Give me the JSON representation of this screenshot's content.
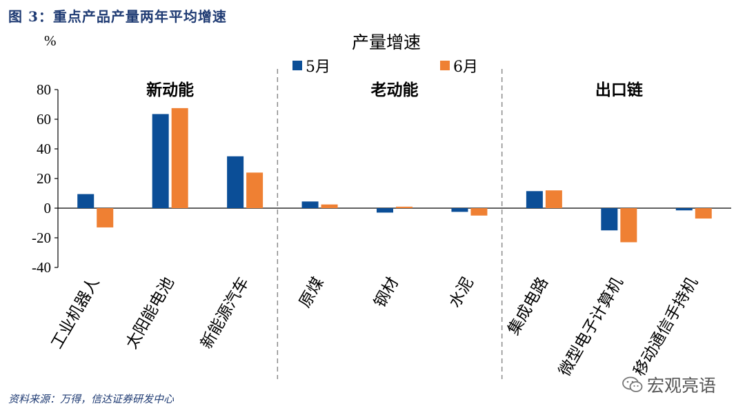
{
  "figure_title": "图 3：重点产品产量两年平均增速",
  "source_note": "资料来源：万得，信达证券研发中心",
  "watermark": "宏观亮语",
  "chart_data": {
    "type": "bar",
    "title": "产量增速",
    "ylabel": "%",
    "ylim": [
      -40,
      80
    ],
    "yticks": [
      80,
      60,
      40,
      20,
      0,
      -20,
      -40
    ],
    "categories": [
      "工业机器人",
      "太阳能电池",
      "新能源汽车",
      "原煤",
      "钢材",
      "水泥",
      "集成电路",
      "微型电子计算机",
      "移动通信手持机"
    ],
    "series": [
      {
        "name": "5月",
        "color": "#0b4e97",
        "values": [
          9.5,
          63.5,
          35,
          4.5,
          -3,
          -2.5,
          11.5,
          -15,
          -1.5
        ]
      },
      {
        "name": "6月",
        "color": "#ef8033",
        "values": [
          -13,
          67.5,
          24,
          2.5,
          1,
          -5,
          12,
          -23,
          -7
        ]
      }
    ],
    "groups": [
      {
        "label": "新动能",
        "start": 0,
        "end": 2
      },
      {
        "label": "老动能",
        "start": 3,
        "end": 5
      },
      {
        "label": "出口链",
        "start": 6,
        "end": 8
      }
    ],
    "legend_position": "top-center",
    "grid": false
  }
}
